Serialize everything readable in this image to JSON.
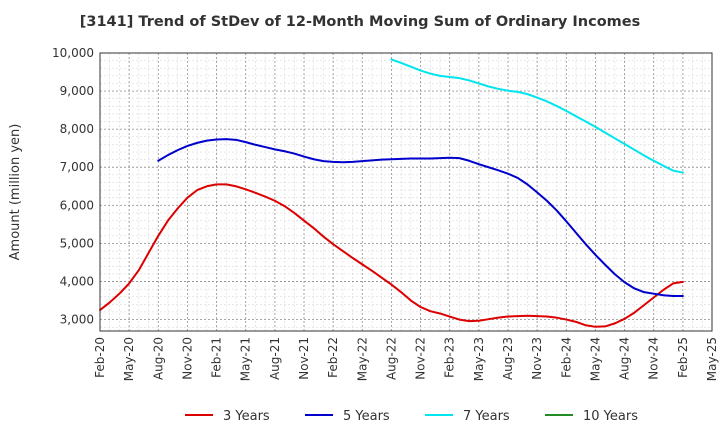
{
  "chart_data": {
    "type": "line",
    "title": "[3141]  Trend of StDev of 12-Month Moving Sum of Ordinary Incomes",
    "ylabel": "Amount (million yen)",
    "xlabel": "",
    "ylim": [
      2700,
      10000
    ],
    "yticks": [
      3000,
      4000,
      5000,
      6000,
      7000,
      8000,
      9000,
      10000
    ],
    "ytick_labels": [
      "3,000",
      "4,000",
      "5,000",
      "6,000",
      "7,000",
      "8,000",
      "9,000",
      "10,000"
    ],
    "x_range": [
      "2020-02",
      "2025-05"
    ],
    "xtick_labels": [
      "Feb-20",
      "May-20",
      "Aug-20",
      "Nov-20",
      "Feb-21",
      "May-21",
      "Aug-21",
      "Nov-21",
      "Feb-22",
      "May-22",
      "Aug-22",
      "Nov-22",
      "Feb-23",
      "May-23",
      "Aug-23",
      "Nov-23",
      "Feb-24",
      "May-24",
      "Aug-24",
      "Nov-24",
      "Feb-25",
      "May-25"
    ],
    "grid": true,
    "legend_position": "bottom",
    "series": [
      {
        "name": "3 Years",
        "color": "#dd0000",
        "x": [
          "2020-02",
          "2020-03",
          "2020-04",
          "2020-05",
          "2020-06",
          "2020-07",
          "2020-08",
          "2020-09",
          "2020-10",
          "2020-11",
          "2020-12",
          "2021-01",
          "2021-02",
          "2021-03",
          "2021-04",
          "2021-05",
          "2021-06",
          "2021-07",
          "2021-08",
          "2021-09",
          "2021-10",
          "2021-11",
          "2021-12",
          "2022-01",
          "2022-02",
          "2022-03",
          "2022-04",
          "2022-05",
          "2022-06",
          "2022-07",
          "2022-08",
          "2022-09",
          "2022-10",
          "2022-11",
          "2022-12",
          "2023-01",
          "2023-02",
          "2023-03",
          "2023-04",
          "2023-05",
          "2023-06",
          "2023-07",
          "2023-08",
          "2023-09",
          "2023-10",
          "2023-11",
          "2023-12",
          "2024-01",
          "2024-02",
          "2024-03",
          "2024-04",
          "2024-05",
          "2024-06",
          "2024-07",
          "2024-08",
          "2024-09",
          "2024-10",
          "2024-11",
          "2024-12",
          "2025-01",
          "2025-02"
        ],
        "values": [
          3250,
          3450,
          3680,
          3950,
          4300,
          4750,
          5200,
          5600,
          5920,
          6200,
          6400,
          6500,
          6550,
          6550,
          6500,
          6420,
          6330,
          6230,
          6120,
          5980,
          5800,
          5600,
          5400,
          5180,
          4980,
          4800,
          4620,
          4450,
          4280,
          4100,
          3920,
          3720,
          3500,
          3330,
          3220,
          3160,
          3080,
          3000,
          2960,
          2970,
          3010,
          3050,
          3080,
          3090,
          3100,
          3090,
          3080,
          3050,
          3000,
          2940,
          2850,
          2810,
          2820,
          2900,
          3020,
          3180,
          3380,
          3580,
          3780,
          3950,
          3990
        ]
      },
      {
        "name": "5 Years",
        "color": "#0000cc",
        "x": [
          "2020-08",
          "2020-09",
          "2020-10",
          "2020-11",
          "2020-12",
          "2021-01",
          "2021-02",
          "2021-03",
          "2021-04",
          "2021-05",
          "2021-06",
          "2021-07",
          "2021-08",
          "2021-09",
          "2021-10",
          "2021-11",
          "2021-12",
          "2022-01",
          "2022-02",
          "2022-03",
          "2022-04",
          "2022-05",
          "2022-06",
          "2022-07",
          "2022-08",
          "2022-09",
          "2022-10",
          "2022-11",
          "2022-12",
          "2023-01",
          "2023-02",
          "2023-03",
          "2023-04",
          "2023-05",
          "2023-06",
          "2023-07",
          "2023-08",
          "2023-09",
          "2023-10",
          "2023-11",
          "2023-12",
          "2024-01",
          "2024-02",
          "2024-03",
          "2024-04",
          "2024-05",
          "2024-06",
          "2024-07",
          "2024-08",
          "2024-09",
          "2024-10",
          "2024-11",
          "2024-12",
          "2025-01",
          "2025-02"
        ],
        "values": [
          7170,
          7320,
          7450,
          7560,
          7640,
          7700,
          7730,
          7740,
          7720,
          7660,
          7590,
          7530,
          7470,
          7420,
          7360,
          7280,
          7210,
          7160,
          7140,
          7130,
          7140,
          7160,
          7180,
          7200,
          7210,
          7220,
          7230,
          7230,
          7230,
          7240,
          7250,
          7240,
          7170,
          7080,
          7000,
          6920,
          6830,
          6720,
          6550,
          6340,
          6120,
          5870,
          5580,
          5280,
          4980,
          4700,
          4440,
          4190,
          3980,
          3820,
          3720,
          3680,
          3640,
          3620,
          3620
        ]
      },
      {
        "name": "7 Years",
        "color": "#00e5ee",
        "x": [
          "2022-08",
          "2022-09",
          "2022-10",
          "2022-11",
          "2022-12",
          "2023-01",
          "2023-02",
          "2023-03",
          "2023-04",
          "2023-05",
          "2023-06",
          "2023-07",
          "2023-08",
          "2023-09",
          "2023-10",
          "2023-11",
          "2023-12",
          "2024-01",
          "2024-02",
          "2024-03",
          "2024-04",
          "2024-05",
          "2024-06",
          "2024-07",
          "2024-08",
          "2024-09",
          "2024-10",
          "2024-11",
          "2024-12",
          "2025-01",
          "2025-02"
        ],
        "values": [
          9830,
          9740,
          9640,
          9540,
          9460,
          9400,
          9370,
          9340,
          9280,
          9200,
          9120,
          9060,
          9010,
          8980,
          8920,
          8830,
          8730,
          8610,
          8480,
          8340,
          8200,
          8060,
          7910,
          7760,
          7610,
          7460,
          7310,
          7170,
          7040,
          6910,
          6860
        ]
      },
      {
        "name": "10 Years",
        "color": "#228b22",
        "x": [],
        "values": []
      }
    ]
  }
}
